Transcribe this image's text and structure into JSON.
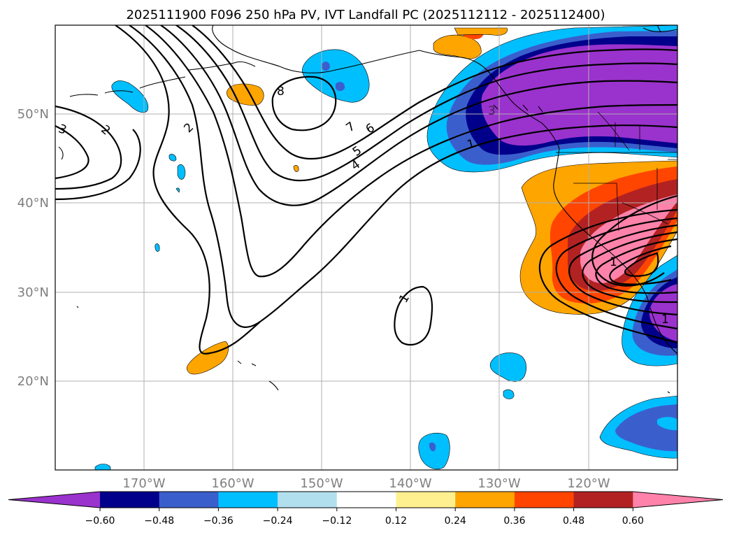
{
  "title": "2025111900 F096 250 hPa PV, IVT Landfall PC (2025112112 - 2025112400)",
  "lat_labels": [
    "50°N",
    "40°N",
    "30°N",
    "20°N"
  ],
  "lon_labels": [
    "170°W",
    "160°W",
    "150°W",
    "140°W",
    "130°W",
    "120°W"
  ],
  "colorbar": {
    "ticks": [
      "−0.60",
      "−0.48",
      "−0.36",
      "−0.24",
      "−0.12",
      "0.12",
      "0.24",
      "0.36",
      "0.48",
      "0.60"
    ],
    "colors": [
      "#9a32cd",
      "#00008b",
      "#3a5fcd",
      "#00bfff",
      "#b2dfee",
      "#ffffff",
      "#fff08f",
      "#ffa500",
      "#ff4500",
      "#b22222",
      "#ff82ab"
    ]
  },
  "contour_labels": [
    "3",
    "2",
    "2",
    "8",
    "7",
    "6",
    "5",
    "4",
    "1",
    "3",
    "1",
    "1",
    "1"
  ],
  "map": {
    "lat_range": [
      "10°N",
      "60°N"
    ],
    "lon_range": [
      "180°",
      "110°W"
    ],
    "grid": true
  }
}
